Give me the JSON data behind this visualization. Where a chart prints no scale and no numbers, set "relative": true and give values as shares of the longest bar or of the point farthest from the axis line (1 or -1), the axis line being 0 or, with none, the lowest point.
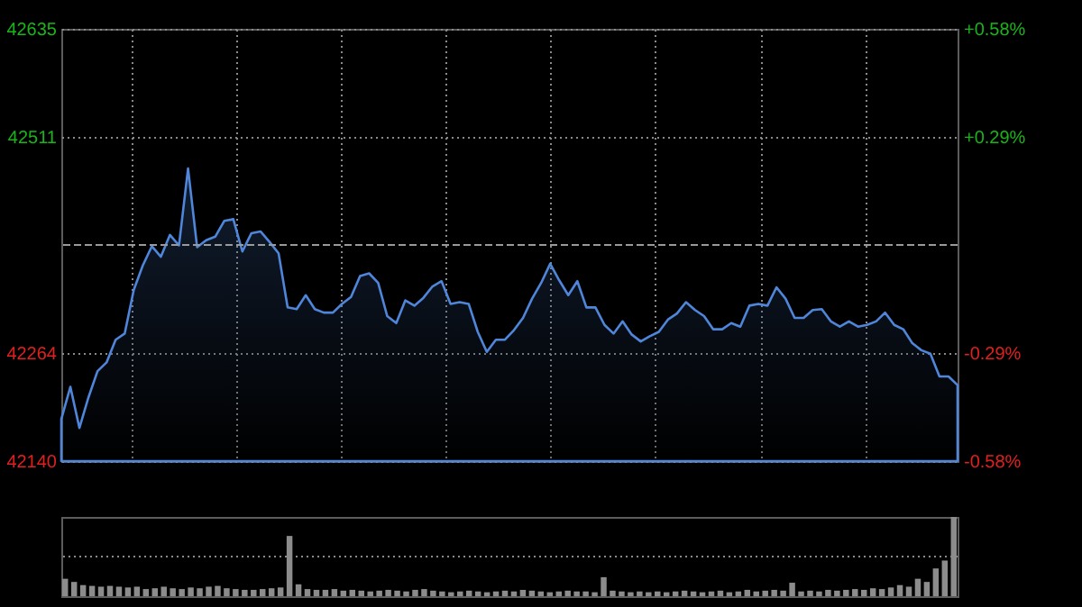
{
  "chart_data": [
    {
      "type": "area",
      "color": "#4f86d9",
      "categories": [
        null,
        null,
        null,
        null,
        null,
        null,
        null,
        null,
        null,
        null,
        null,
        null,
        null,
        null,
        null,
        null,
        null,
        null,
        null,
        null,
        null,
        null,
        null,
        null,
        null,
        null,
        null,
        null,
        null,
        null,
        null,
        null,
        null,
        null,
        null,
        null,
        null,
        null,
        null,
        null,
        null,
        null,
        null,
        null,
        null,
        null,
        null,
        null,
        null,
        null,
        null,
        null,
        null,
        null,
        null,
        null,
        null,
        null,
        null,
        null,
        null,
        null,
        null,
        null,
        null,
        null,
        null,
        null,
        null,
        null,
        null,
        null,
        null,
        null,
        null,
        null,
        null,
        null,
        null,
        null,
        null,
        null,
        null,
        null,
        null,
        null,
        null,
        null,
        null,
        null,
        null,
        null,
        null,
        null,
        null,
        null,
        null,
        null,
        null,
        null
      ],
      "values": [
        42188,
        42225,
        42178,
        42213,
        42243,
        42253,
        42279,
        42286,
        42336,
        42364,
        42386,
        42374,
        42399,
        42387,
        42475,
        42385,
        42393,
        42397,
        42415,
        42417,
        42380,
        42401,
        42403,
        42391,
        42378,
        42316,
        42314,
        42330,
        42314,
        42310,
        42310,
        42320,
        42328,
        42352,
        42355,
        42344,
        42306,
        42298,
        42324,
        42318,
        42327,
        42340,
        42346,
        42320,
        42322,
        42320,
        42288,
        42265,
        42279,
        42279,
        42290,
        42304,
        42326,
        42344,
        42366,
        42347,
        42330,
        42346,
        42316,
        42316,
        42296,
        42286,
        42300,
        42285,
        42277,
        42283,
        42288,
        42302,
        42309,
        42322,
        42313,
        42306,
        42291,
        42291,
        42298,
        42294,
        42318,
        42320,
        42318,
        42339,
        42326,
        42304,
        42304,
        42313,
        42314,
        42300,
        42294,
        42300,
        42294,
        42296,
        42300,
        42310,
        42296,
        42291,
        42275,
        42267,
        42263,
        42237,
        42237,
        42227
      ],
      "ylim": [
        42140,
        42635
      ],
      "yticks": [
        42635,
        42511,
        42264,
        42140
      ],
      "y2lim": [
        -0.58,
        0.58
      ],
      "y2ticks": [
        {
          "value": 0.58,
          "label": "+0.58%"
        },
        {
          "value": 0.29,
          "label": "+0.29%"
        },
        {
          "value": -0.29,
          "label": "-0.29%"
        },
        {
          "value": -0.58,
          "label": "-0.58%"
        }
      ],
      "ref_lines": [
        {
          "axis": "y2",
          "value": 0,
          "line_style": "dashed",
          "color": "#9a9a9a"
        }
      ],
      "grid": true
    },
    {
      "type": "bar",
      "relative": true,
      "color": "#8c8c8c",
      "ref_lines": [
        {
          "axis": "y",
          "value": 0.5,
          "line_style": "dotted",
          "color": "#8a8a8a"
        }
      ],
      "categories": [
        null,
        null,
        null,
        null,
        null,
        null,
        null,
        null,
        null,
        null,
        null,
        null,
        null,
        null,
        null,
        null,
        null,
        null,
        null,
        null,
        null,
        null,
        null,
        null,
        null,
        null,
        null,
        null,
        null,
        null,
        null,
        null,
        null,
        null,
        null,
        null,
        null,
        null,
        null,
        null,
        null,
        null,
        null,
        null,
        null,
        null,
        null,
        null,
        null,
        null,
        null,
        null,
        null,
        null,
        null,
        null,
        null,
        null,
        null,
        null,
        null,
        null,
        null,
        null,
        null,
        null,
        null,
        null,
        null,
        null,
        null,
        null,
        null,
        null,
        null,
        null,
        null,
        null,
        null,
        null,
        null,
        null,
        null,
        null,
        null,
        null,
        null,
        null,
        null,
        null,
        null,
        null,
        null,
        null,
        null,
        null,
        null,
        null,
        null,
        null
      ],
      "values": [
        0.22,
        0.18,
        0.14,
        0.13,
        0.12,
        0.13,
        0.12,
        0.11,
        0.12,
        0.09,
        0.1,
        0.12,
        0.1,
        0.09,
        0.11,
        0.1,
        0.12,
        0.13,
        0.1,
        0.09,
        0.08,
        0.08,
        0.09,
        0.1,
        0.11,
        0.76,
        0.15,
        0.09,
        0.08,
        0.08,
        0.09,
        0.07,
        0.08,
        0.07,
        0.06,
        0.07,
        0.08,
        0.07,
        0.06,
        0.08,
        0.09,
        0.07,
        0.06,
        0.05,
        0.06,
        0.07,
        0.06,
        0.05,
        0.06,
        0.07,
        0.06,
        0.08,
        0.07,
        0.06,
        0.05,
        0.06,
        0.07,
        0.06,
        0.06,
        0.05,
        0.24,
        0.07,
        0.06,
        0.05,
        0.06,
        0.05,
        0.06,
        0.05,
        0.06,
        0.07,
        0.06,
        0.05,
        0.06,
        0.07,
        0.05,
        0.06,
        0.08,
        0.06,
        0.07,
        0.08,
        0.07,
        0.17,
        0.06,
        0.07,
        0.06,
        0.08,
        0.07,
        0.08,
        0.09,
        0.08,
        0.1,
        0.09,
        0.11,
        0.14,
        0.12,
        0.22,
        0.18,
        0.35,
        0.45,
        1
      ]
    }
  ]
}
